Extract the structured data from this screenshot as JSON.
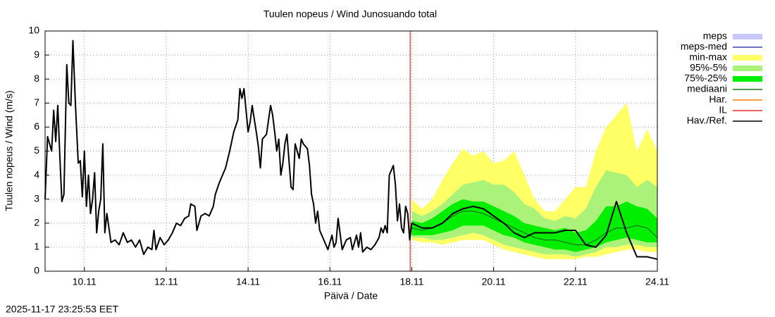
{
  "chart_data": {
    "type": "line",
    "title": "Tuulen nopeus / Wind  Junosuando total",
    "xlabel": "Päivä / Date",
    "ylabel": "Tuulen nopeus / Wind (m/s)",
    "timestamp": "2025-11-17 23:25:53 EET",
    "xlim": [
      9.04,
      24.0
    ],
    "xticks": [
      {
        "value": 10,
        "label": "10.11"
      },
      {
        "value": 12,
        "label": "12.11"
      },
      {
        "value": 14,
        "label": "14.11"
      },
      {
        "value": 16,
        "label": "16.11"
      },
      {
        "value": 18,
        "label": "18.11"
      },
      {
        "value": 20,
        "label": "20.11"
      },
      {
        "value": 22,
        "label": "22.11"
      },
      {
        "value": 24,
        "label": "24.11"
      }
    ],
    "ylim": [
      0,
      10
    ],
    "yticks": [
      0,
      1,
      2,
      3,
      4,
      5,
      6,
      7,
      8,
      9,
      10
    ],
    "grid": true,
    "series": [
      {
        "name": "meps",
        "kind": "band",
        "color": "#c8c8f8",
        "x": [],
        "low": [],
        "high": []
      },
      {
        "name": "meps-med",
        "kind": "line",
        "color": "#4040b0",
        "x": [],
        "values": []
      },
      {
        "name": "min-max",
        "kind": "band",
        "color": "#ffff66",
        "x": [
          18.0,
          18.25,
          18.5,
          18.75,
          19.0,
          19.25,
          19.5,
          19.75,
          20.0,
          20.25,
          20.5,
          20.75,
          21.0,
          21.25,
          21.5,
          21.75,
          22.0,
          22.25,
          22.5,
          22.75,
          23.0,
          23.25,
          23.5,
          23.75,
          24.0
        ],
        "low": [
          1.3,
          1.2,
          1.2,
          1.1,
          1.2,
          1.3,
          1.3,
          1.3,
          1.1,
          0.9,
          0.8,
          0.7,
          0.6,
          0.5,
          0.5,
          0.5,
          0.5,
          0.6,
          0.6,
          0.7,
          0.8,
          0.9,
          0.9,
          0.8,
          0.8
        ],
        "high": [
          3.0,
          2.6,
          3.0,
          3.8,
          4.5,
          5.1,
          4.8,
          5.0,
          4.5,
          4.6,
          5.0,
          4.0,
          3.0,
          2.5,
          2.5,
          3.0,
          3.5,
          3.5,
          5.0,
          6.0,
          6.5,
          7.0,
          5.0,
          5.9,
          5.0
        ]
      },
      {
        "name": "95%-5%",
        "kind": "band",
        "color": "#aaf27a",
        "x": [
          18.0,
          18.25,
          18.5,
          18.75,
          19.0,
          19.25,
          19.5,
          19.75,
          20.0,
          20.25,
          20.5,
          20.75,
          21.0,
          21.25,
          21.5,
          21.75,
          22.0,
          22.25,
          22.5,
          22.75,
          23.0,
          23.25,
          23.5,
          23.75,
          24.0
        ],
        "low": [
          1.4,
          1.4,
          1.3,
          1.3,
          1.4,
          1.5,
          1.6,
          1.5,
          1.3,
          1.1,
          1.0,
          0.9,
          0.8,
          0.7,
          0.7,
          0.7,
          0.6,
          0.7,
          0.8,
          1.0,
          1.0,
          1.1,
          1.1,
          1.0,
          1.0
        ],
        "high": [
          2.5,
          2.3,
          2.5,
          2.8,
          3.2,
          3.6,
          3.7,
          3.8,
          3.6,
          3.6,
          3.3,
          2.8,
          2.6,
          2.2,
          2.1,
          2.3,
          2.2,
          2.6,
          3.5,
          4.2,
          4.1,
          4.0,
          3.5,
          3.8,
          3.5
        ]
      },
      {
        "name": "75%-25%",
        "kind": "band",
        "color": "#00ee00",
        "x": [
          18.0,
          18.25,
          18.5,
          18.75,
          19.0,
          19.25,
          19.5,
          19.75,
          20.0,
          20.25,
          20.5,
          20.75,
          21.0,
          21.25,
          21.5,
          21.75,
          22.0,
          22.25,
          22.5,
          22.75,
          23.0,
          23.25,
          23.5,
          23.75,
          24.0
        ],
        "low": [
          1.5,
          1.5,
          1.5,
          1.6,
          1.7,
          1.9,
          1.9,
          1.9,
          1.7,
          1.5,
          1.4,
          1.2,
          1.1,
          1.0,
          0.9,
          0.9,
          0.8,
          0.9,
          1.0,
          1.2,
          1.3,
          1.4,
          1.3,
          1.2,
          1.2
        ],
        "high": [
          2.1,
          2.0,
          2.2,
          2.5,
          2.8,
          3.0,
          2.9,
          2.9,
          2.7,
          2.5,
          2.3,
          2.0,
          1.9,
          1.8,
          1.7,
          1.8,
          1.6,
          1.7,
          2.1,
          2.7,
          2.7,
          2.9,
          2.7,
          2.6,
          2.2
        ]
      },
      {
        "name": "mediaani",
        "kind": "line",
        "color": "#1a7a1a",
        "x": [
          18.0,
          18.25,
          18.5,
          18.75,
          19.0,
          19.25,
          19.5,
          19.75,
          20.0,
          20.25,
          20.5,
          20.75,
          21.0,
          21.25,
          21.5,
          21.75,
          22.0,
          22.25,
          22.5,
          22.75,
          23.0,
          23.25,
          23.5,
          23.75,
          24.0
        ],
        "values": [
          1.8,
          1.7,
          1.8,
          2.0,
          2.3,
          2.5,
          2.5,
          2.4,
          2.2,
          2.0,
          1.8,
          1.6,
          1.4,
          1.3,
          1.3,
          1.2,
          1.1,
          1.1,
          1.3,
          1.6,
          1.8,
          1.8,
          1.9,
          1.8,
          1.4
        ]
      },
      {
        "name": "Har.",
        "kind": "line",
        "color": "#ff8000",
        "x": [],
        "values": []
      },
      {
        "name": "IL",
        "kind": "vline",
        "color": "#dd0000",
        "x": 17.96
      },
      {
        "name": "Hav./Ref.",
        "kind": "line",
        "color": "#000000",
        "x": [
          9.04,
          9.1,
          9.2,
          9.25,
          9.3,
          9.35,
          9.4,
          9.45,
          9.5,
          9.57,
          9.62,
          9.67,
          9.72,
          9.78,
          9.85,
          9.9,
          9.95,
          10.0,
          10.05,
          10.1,
          10.15,
          10.2,
          10.25,
          10.3,
          10.35,
          10.4,
          10.45,
          10.5,
          10.55,
          10.65,
          10.75,
          10.85,
          10.95,
          11.05,
          11.15,
          11.25,
          11.35,
          11.45,
          11.55,
          11.65,
          11.7,
          11.75,
          11.85,
          11.95,
          12.05,
          12.15,
          12.25,
          12.35,
          12.45,
          12.55,
          12.6,
          12.7,
          12.75,
          12.85,
          12.95,
          13.05,
          13.15,
          13.2,
          13.3,
          13.45,
          13.55,
          13.65,
          13.75,
          13.8,
          13.85,
          13.9,
          14.0,
          14.05,
          14.1,
          14.2,
          14.25,
          14.3,
          14.35,
          14.45,
          14.55,
          14.6,
          14.65,
          14.7,
          14.75,
          14.8,
          14.85,
          14.9,
          14.95,
          15.05,
          15.1,
          15.15,
          15.25,
          15.3,
          15.35,
          15.45,
          15.5,
          15.55,
          15.6,
          15.65,
          15.7,
          15.75,
          15.85,
          15.95,
          16.05,
          16.1,
          16.15,
          16.2,
          16.3,
          16.4,
          16.5,
          16.55,
          16.6,
          16.65,
          16.7,
          16.75,
          16.8,
          16.9,
          17.0,
          17.1,
          17.2,
          17.25,
          17.3,
          17.35,
          17.4,
          17.45,
          17.5,
          17.55,
          17.6,
          17.65,
          17.7,
          17.75,
          17.8,
          17.85,
          17.9,
          17.95,
          18.0,
          18.25,
          18.5,
          18.75,
          19.0,
          19.25,
          19.5,
          19.75,
          20.0,
          20.25,
          20.5,
          20.75,
          21.0,
          21.25,
          21.5,
          21.75,
          22.0,
          22.25,
          22.5,
          22.75,
          23.0,
          23.25,
          23.5,
          23.75,
          24.0
        ],
        "values": [
          3.0,
          5.6,
          5.0,
          6.7,
          5.4,
          6.9,
          4.8,
          2.9,
          3.2,
          8.6,
          7.0,
          6.9,
          9.6,
          7.0,
          4.5,
          4.6,
          3.1,
          5.0,
          2.7,
          4.0,
          2.4,
          3.0,
          4.1,
          1.6,
          2.5,
          3.0,
          5.3,
          1.6,
          2.4,
          1.2,
          1.3,
          1.1,
          1.6,
          1.2,
          1.3,
          1.0,
          1.3,
          0.7,
          1.0,
          0.9,
          1.7,
          0.9,
          1.4,
          1.1,
          1.3,
          1.6,
          2.0,
          1.9,
          2.2,
          2.3,
          2.8,
          2.7,
          1.7,
          2.3,
          2.4,
          2.3,
          2.7,
          3.2,
          3.7,
          4.3,
          5.0,
          5.8,
          6.3,
          7.6,
          7.2,
          7.6,
          5.8,
          6.2,
          6.9,
          5.8,
          5.2,
          4.3,
          5.5,
          5.7,
          6.9,
          6.5,
          5.8,
          5.0,
          5.5,
          4.0,
          4.5,
          5.3,
          5.7,
          3.5,
          3.4,
          5.3,
          4.7,
          5.5,
          5.3,
          5.1,
          4.4,
          3.2,
          2.8,
          2.0,
          2.5,
          1.7,
          1.3,
          0.9,
          1.5,
          1.0,
          1.2,
          2.2,
          0.9,
          1.3,
          1.4,
          0.9,
          1.2,
          1.5,
          1.0,
          1.6,
          0.8,
          1.0,
          0.9,
          1.1,
          1.4,
          1.8,
          1.6,
          1.9,
          1.6,
          4.0,
          4.2,
          4.4,
          3.6,
          2.1,
          2.8,
          1.8,
          1.6,
          2.7,
          2.4,
          1.3,
          2.0,
          1.8,
          1.8,
          2.0,
          2.4,
          2.6,
          2.7,
          2.6,
          2.3,
          2.0,
          1.6,
          1.4,
          1.6,
          1.6,
          1.6,
          1.7,
          1.7,
          1.1,
          1.0,
          1.5,
          2.9,
          1.6,
          0.6,
          0.6,
          0.5
        ]
      }
    ]
  }
}
